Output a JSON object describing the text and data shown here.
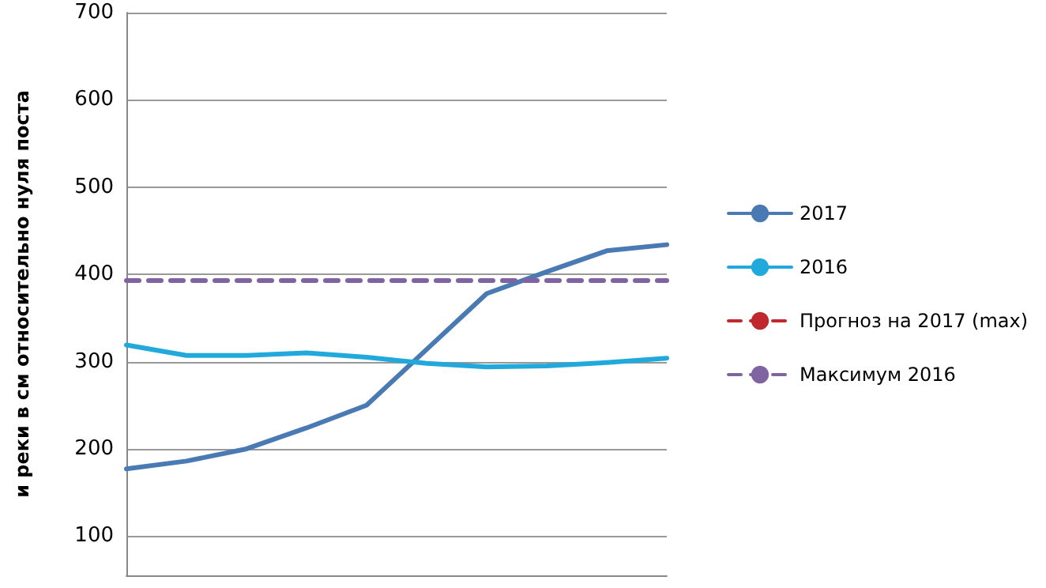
{
  "chart_data": {
    "type": "line",
    "ylabel": "и реки в см относительно нуля поста",
    "categories": [
      null,
      null,
      null,
      null,
      null,
      null,
      null,
      null,
      null,
      null
    ],
    "series": [
      {
        "name": "2017",
        "color": "#4a7ab4",
        "values": [
          177,
          186,
          200,
          224,
          250,
          314,
          378,
          403,
          427,
          434
        ]
      },
      {
        "name": "2016",
        "color": "#22a9dc",
        "values": [
          319,
          307,
          307,
          310,
          305,
          298,
          294,
          295,
          299,
          304
        ]
      },
      {
        "name": "Прогноз на 2017 (max)",
        "color": "#c0282d",
        "line_style": "dashed",
        "values": [
          null,
          null,
          null,
          null,
          null,
          null,
          null,
          null,
          null,
          null
        ]
      },
      {
        "name": "Максимум 2016",
        "color": "#8064a2",
        "line_style": "dashed",
        "values": [
          393,
          393,
          393,
          393,
          393,
          393,
          393,
          393,
          393,
          393
        ]
      }
    ],
    "ylim": [
      55,
      700
    ],
    "yticks": [
      100,
      200,
      300,
      400,
      500,
      600,
      700
    ],
    "grid": "y",
    "legend": "right",
    "marker": "none",
    "line_style": "solid"
  }
}
